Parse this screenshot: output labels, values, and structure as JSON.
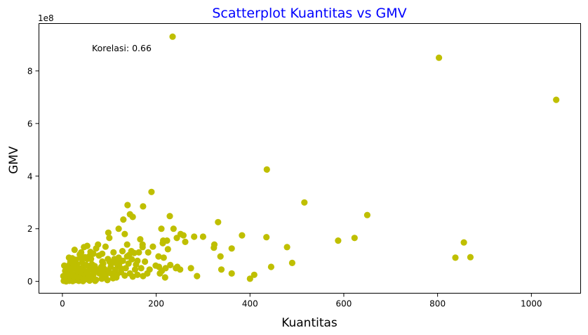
{
  "chart_data": {
    "type": "scatter",
    "title": "Scatterplot Kuantitas vs GMV",
    "title_color": "#0000ff",
    "xlabel": "Kuantitas",
    "ylabel": "GMV",
    "y_offset_text": "1e8",
    "annotation": "Korelasi: 0.66",
    "marker_color": "#bfbf00",
    "xlim": [
      -50,
      1105
    ],
    "ylim": [
      -0.45,
      9.8
    ],
    "x_ticks": [
      0,
      200,
      400,
      600,
      800,
      1000
    ],
    "y_ticks": [
      0,
      2,
      4,
      6,
      8
    ],
    "grid": false,
    "legend": "none",
    "points": [
      [
        235,
        9.3
      ],
      [
        803,
        8.5
      ],
      [
        1053,
        6.9
      ],
      [
        436,
        4.25
      ],
      [
        190,
        3.4
      ],
      [
        516,
        3.0
      ],
      [
        139,
        2.9
      ],
      [
        172,
        2.85
      ],
      [
        144,
        2.55
      ],
      [
        150,
        2.45
      ],
      [
        229,
        2.48
      ],
      [
        650,
        2.52
      ],
      [
        130,
        2.35
      ],
      [
        332,
        2.25
      ],
      [
        211,
        2.0
      ],
      [
        237,
        2.0
      ],
      [
        120,
        2.0
      ],
      [
        98,
        1.85
      ],
      [
        133,
        1.8
      ],
      [
        252,
        1.8
      ],
      [
        258,
        1.75
      ],
      [
        383,
        1.75
      ],
      [
        300,
        1.7
      ],
      [
        281,
        1.7
      ],
      [
        100,
        1.65
      ],
      [
        244,
        1.65
      ],
      [
        435,
        1.68
      ],
      [
        623,
        1.65
      ],
      [
        588,
        1.55
      ],
      [
        856,
        1.48
      ],
      [
        166,
        1.6
      ],
      [
        215,
        1.55
      ],
      [
        223,
        1.55
      ],
      [
        262,
        1.5
      ],
      [
        214,
        1.45
      ],
      [
        138,
        1.4
      ],
      [
        171,
        1.4
      ],
      [
        324,
        1.4
      ],
      [
        323,
        1.28
      ],
      [
        92,
        1.32
      ],
      [
        53,
        1.35
      ],
      [
        46,
        1.3
      ],
      [
        76,
        1.4
      ],
      [
        72,
        1.25
      ],
      [
        171,
        1.3
      ],
      [
        193,
        1.32
      ],
      [
        225,
        1.22
      ],
      [
        361,
        1.25
      ],
      [
        479,
        1.3
      ],
      [
        26,
        1.2
      ],
      [
        40,
        1.1
      ],
      [
        66,
        1.05
      ],
      [
        109,
        1.1
      ],
      [
        128,
        1.15
      ],
      [
        153,
        1.08
      ],
      [
        163,
        1.1
      ],
      [
        183,
        1.1
      ],
      [
        142,
        1.0
      ],
      [
        337,
        0.95
      ],
      [
        138,
        0.95
      ],
      [
        205,
        0.95
      ],
      [
        838,
        0.9
      ],
      [
        870,
        0.92
      ],
      [
        120,
        0.9
      ],
      [
        97,
        0.85
      ],
      [
        111,
        0.85
      ],
      [
        216,
        0.9
      ],
      [
        53,
        0.85
      ],
      [
        85,
        0.75
      ],
      [
        23,
        0.7
      ],
      [
        31,
        0.65
      ],
      [
        13,
        0.6
      ],
      [
        44,
        0.55
      ],
      [
        63,
        0.65
      ],
      [
        160,
        0.78
      ],
      [
        176,
        0.75
      ],
      [
        490,
        0.7
      ],
      [
        16,
        0.5
      ],
      [
        30,
        0.45
      ],
      [
        47,
        0.4
      ],
      [
        58,
        0.5
      ],
      [
        75,
        0.45
      ],
      [
        88,
        0.5
      ],
      [
        103,
        0.55
      ],
      [
        118,
        0.6
      ],
      [
        135,
        0.5
      ],
      [
        155,
        0.45
      ],
      [
        206,
        0.55
      ],
      [
        220,
        0.5
      ],
      [
        245,
        0.55
      ],
      [
        251,
        0.45
      ],
      [
        274,
        0.5
      ],
      [
        445,
        0.55
      ],
      [
        339,
        0.45
      ],
      [
        212,
        0.4
      ],
      [
        242,
        0.5
      ],
      [
        10,
        0.3
      ],
      [
        18,
        0.35
      ],
      [
        27,
        0.25
      ],
      [
        34,
        0.3
      ],
      [
        45,
        0.2
      ],
      [
        54,
        0.3
      ],
      [
        66,
        0.25
      ],
      [
        79,
        0.3
      ],
      [
        92,
        0.2
      ],
      [
        104,
        0.3
      ],
      [
        116,
        0.25
      ],
      [
        125,
        0.35
      ],
      [
        144,
        0.3
      ],
      [
        160,
        0.25
      ],
      [
        172,
        0.2
      ],
      [
        181,
        0.3
      ],
      [
        208,
        0.3
      ],
      [
        219,
        0.15
      ],
      [
        287,
        0.2
      ],
      [
        361,
        0.3
      ],
      [
        409,
        0.25
      ],
      [
        400,
        0.1
      ],
      [
        5,
        0.1
      ],
      [
        12,
        0.05
      ],
      [
        20,
        0.1
      ],
      [
        28,
        0.05
      ],
      [
        37,
        0.12
      ],
      [
        49,
        0.08
      ],
      [
        61,
        0.12
      ],
      [
        72,
        0.06
      ],
      [
        84,
        0.1
      ],
      [
        96,
        0.05
      ],
      [
        108,
        0.12
      ],
      [
        3,
        0.02
      ],
      [
        8,
        0.0
      ],
      [
        15,
        0.02
      ],
      [
        22,
        0.01
      ],
      [
        35,
        0.02
      ],
      [
        44,
        0.01
      ],
      [
        58,
        0.03
      ],
      [
        70,
        0.02
      ],
      [
        2,
        0.2
      ],
      [
        6,
        0.4
      ],
      [
        9,
        0.15
      ],
      [
        14,
        0.22
      ],
      [
        19,
        0.42
      ],
      [
        24,
        0.18
      ],
      [
        33,
        0.52
      ],
      [
        39,
        0.36
      ],
      [
        51,
        0.62
      ],
      [
        56,
        0.16
      ],
      [
        64,
        0.44
      ],
      [
        69,
        0.58
      ],
      [
        81,
        0.38
      ],
      [
        87,
        0.68
      ],
      [
        94,
        0.42
      ],
      [
        101,
        0.74
      ],
      [
        113,
        0.44
      ],
      [
        121,
        0.66
      ],
      [
        129,
        0.78
      ],
      [
        141,
        0.68
      ],
      [
        148,
        0.84
      ],
      [
        157,
        0.64
      ],
      [
        29,
        0.82
      ],
      [
        38,
        0.9
      ],
      [
        57,
        0.95
      ],
      [
        78,
        0.98
      ],
      [
        11,
        0.5
      ],
      [
        17,
        0.75
      ],
      [
        25,
        0.58
      ],
      [
        42,
        0.72
      ],
      [
        61,
        0.85
      ],
      [
        83,
        0.55
      ],
      [
        110,
        0.72
      ],
      [
        126,
        0.48
      ],
      [
        4,
        0.6
      ],
      [
        7,
        0.28
      ],
      [
        21,
        0.88
      ],
      [
        32,
        0.15
      ],
      [
        48,
        0.92
      ],
      [
        67,
        0.35
      ],
      [
        89,
        0.28
      ],
      [
        99,
        0.38
      ],
      [
        115,
        0.15
      ],
      [
        133,
        0.22
      ],
      [
        150,
        0.18
      ],
      [
        168,
        0.5
      ],
      [
        186,
        0.45
      ],
      [
        199,
        0.6
      ],
      [
        230,
        0.62
      ],
      [
        147,
        1.15
      ],
      [
        122,
        0.78
      ],
      [
        85,
        1.05
      ],
      [
        60,
        1.12
      ],
      [
        37,
        1.02
      ],
      [
        14,
        0.9
      ]
    ]
  }
}
